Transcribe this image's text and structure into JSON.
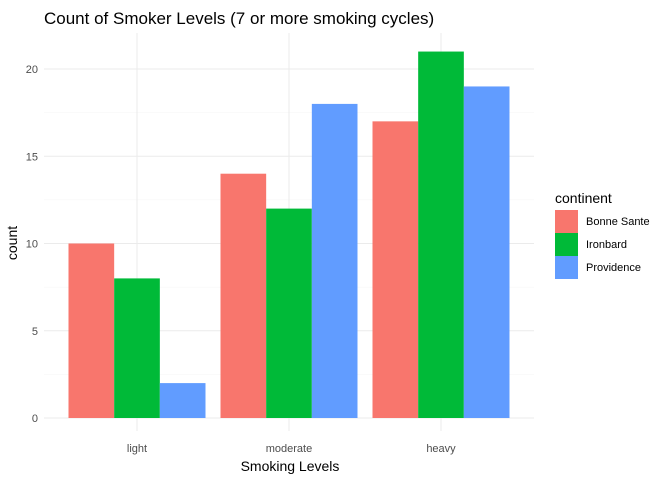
{
  "chart_data": {
    "type": "bar",
    "title": "Count of Smoker Levels (7 or more smoking cycles)",
    "xlabel": "Smoking Levels",
    "ylabel": "count",
    "categories": [
      "light",
      "moderate",
      "heavy"
    ],
    "ylim": [
      0,
      21.9
    ],
    "yticks": [
      0,
      5,
      10,
      15,
      20
    ],
    "yticks_minor": [
      2.5,
      7.5,
      12.5,
      17.5
    ],
    "grid": true,
    "legend": {
      "title": "continent",
      "position": "right"
    },
    "series": [
      {
        "name": "Bonne Sante",
        "color": "#F8766D",
        "values": [
          10,
          14,
          17
        ]
      },
      {
        "name": "Ironbard",
        "color": "#00BA38",
        "values": [
          8,
          12,
          21
        ]
      },
      {
        "name": "Providence",
        "color": "#619CFF",
        "values": [
          2,
          18,
          19
        ]
      }
    ]
  }
}
